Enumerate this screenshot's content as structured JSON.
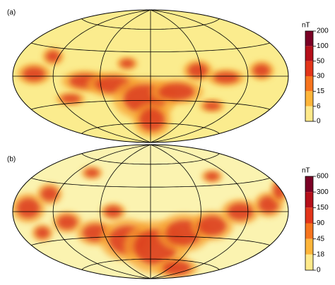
{
  "panels": [
    {
      "label": "(a)",
      "unit": "nT",
      "colorbar_ticks": [
        200,
        100,
        50,
        30,
        15,
        6,
        0
      ]
    },
    {
      "label": "(b)",
      "unit": "nT",
      "colorbar_ticks": [
        600,
        300,
        150,
        90,
        45,
        18,
        0
      ]
    }
  ]
}
